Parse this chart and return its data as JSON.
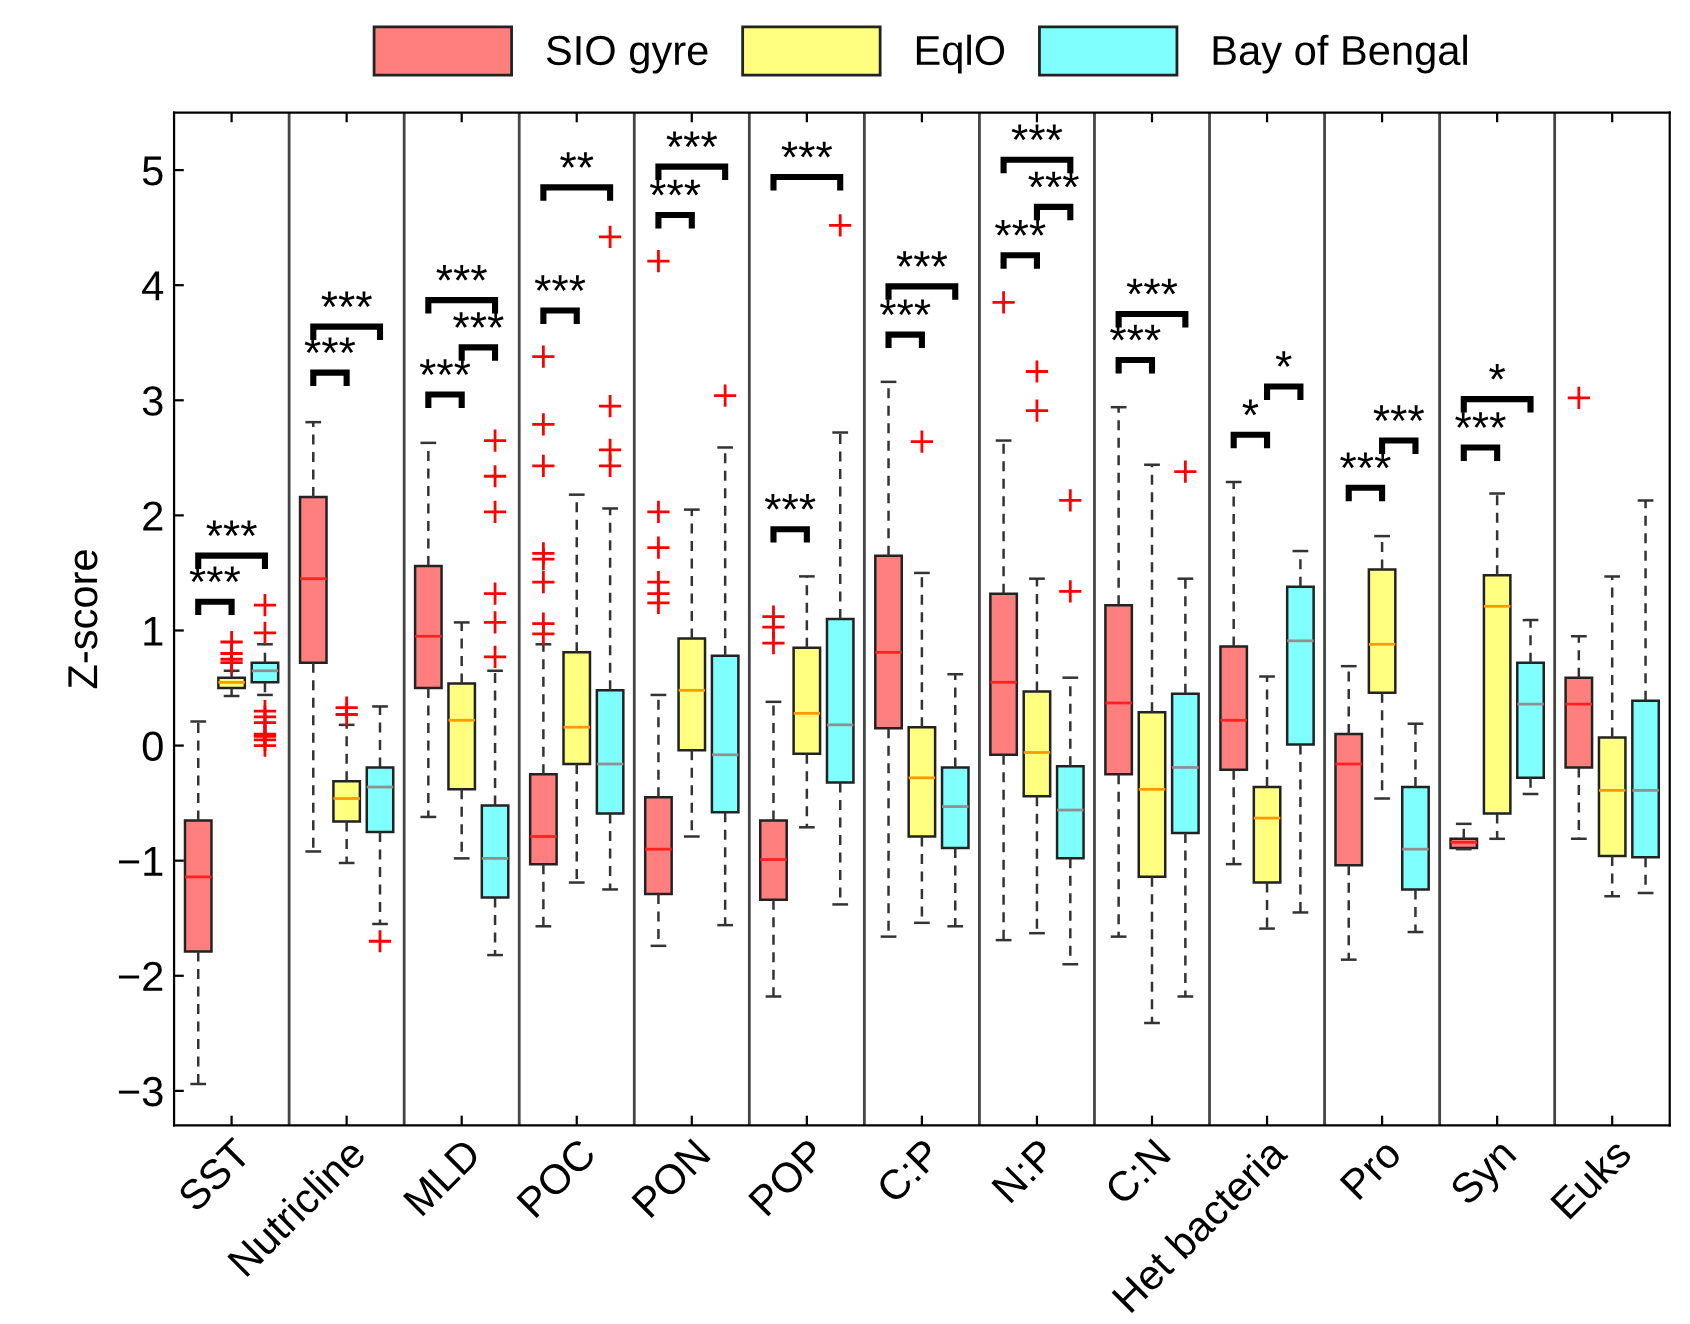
{
  "chart_data": {
    "type": "box",
    "ylabel": "Z-score",
    "categories": [
      "SST",
      "Nutricline",
      "MLD",
      "POC",
      "PON",
      "POP",
      "C:P",
      "N:P",
      "C:N",
      "Het bacteria",
      "Pro",
      "Syn",
      "Euks"
    ],
    "ylim": [
      -3.3,
      5.5
    ],
    "yticks": [
      -3,
      -2,
      -1,
      0,
      1,
      2,
      3,
      4,
      5
    ],
    "grid": "x",
    "legend": "top",
    "series": [
      {
        "name": "SIO gyre",
        "color": "#ff7f7f",
        "boxes": [
          {
            "low": -2.94,
            "q1": -1.79,
            "median": -1.14,
            "q3": -0.65,
            "high": 0.21
          },
          {
            "low": -0.92,
            "q1": 0.72,
            "median": 1.45,
            "q3": 2.16,
            "high": 2.81
          },
          {
            "low": -0.62,
            "q1": 0.5,
            "median": 0.95,
            "q3": 1.56,
            "high": 2.63
          },
          {
            "low": -1.57,
            "q1": -1.03,
            "median": -0.79,
            "q3": -0.25,
            "high": 0.88,
            "outliers": [
              3.38,
              2.79,
              2.43,
              1.67,
              1.62,
              1.42,
              1.06,
              0.97
            ]
          },
          {
            "low": -1.74,
            "q1": -1.29,
            "median": -0.9,
            "q3": -0.45,
            "high": 0.44,
            "outliers": [
              4.21,
              2.03,
              1.72,
              1.42,
              1.32,
              1.24
            ]
          },
          {
            "low": -2.18,
            "q1": -1.34,
            "median": -0.99,
            "q3": -0.65,
            "high": 0.38,
            "outliers": [
              1.12,
              1.03,
              0.89
            ]
          },
          {
            "low": -1.66,
            "q1": 0.15,
            "median": 0.81,
            "q3": 1.65,
            "high": 3.16
          },
          {
            "low": -1.69,
            "q1": -0.08,
            "median": 0.55,
            "q3": 1.32,
            "high": 2.65,
            "outliers": [
              3.85
            ]
          },
          {
            "low": -1.66,
            "q1": -0.25,
            "median": 0.37,
            "q3": 1.22,
            "high": 2.94
          },
          {
            "low": -1.03,
            "q1": -0.21,
            "median": 0.22,
            "q3": 0.86,
            "high": 2.29
          },
          {
            "low": -1.86,
            "q1": -1.04,
            "median": -0.16,
            "q3": 0.1,
            "high": 0.69
          },
          {
            "low": -0.9,
            "q1": -0.89,
            "median": -0.84,
            "q3": -0.81,
            "high": -0.68
          },
          {
            "low": -0.81,
            "q1": -0.19,
            "median": 0.36,
            "q3": 0.59,
            "high": 0.95,
            "outliers": [
              3.02
            ]
          }
        ]
      },
      {
        "name": "EqlO",
        "color": "#ffff80",
        "boxes": [
          {
            "low": 0.43,
            "q1": 0.5,
            "median": 0.55,
            "q3": 0.59,
            "high": 0.65,
            "outliers": [
              0.9,
              0.8,
              0.75,
              0.72
            ]
          },
          {
            "low": -1.02,
            "q1": -0.66,
            "median": -0.46,
            "q3": -0.31,
            "high": 0.18,
            "outliers": [
              0.33,
              0.27
            ]
          },
          {
            "low": -0.98,
            "q1": -0.38,
            "median": 0.22,
            "q3": 0.54,
            "high": 1.07
          },
          {
            "low": -1.19,
            "q1": -0.16,
            "median": 0.16,
            "q3": 0.81,
            "high": 2.18
          },
          {
            "low": -0.79,
            "q1": -0.04,
            "median": 0.48,
            "q3": 0.93,
            "high": 2.05
          },
          {
            "low": -0.71,
            "q1": -0.07,
            "median": 0.28,
            "q3": 0.85,
            "high": 1.47
          },
          {
            "low": -1.54,
            "q1": -0.79,
            "median": -0.28,
            "q3": 0.16,
            "high": 1.5,
            "outliers": [
              2.64
            ]
          },
          {
            "low": -1.63,
            "q1": -0.44,
            "median": -0.06,
            "q3": 0.47,
            "high": 1.45,
            "outliers": [
              3.25,
              2.91
            ]
          },
          {
            "low": -2.41,
            "q1": -1.14,
            "median": -0.38,
            "q3": 0.29,
            "high": 2.44
          },
          {
            "low": -1.59,
            "q1": -1.19,
            "median": -0.63,
            "q3": -0.36,
            "high": 0.6
          },
          {
            "low": -0.46,
            "q1": 0.46,
            "median": 0.88,
            "q3": 1.53,
            "high": 1.82
          },
          {
            "low": -0.81,
            "q1": -0.59,
            "median": 1.21,
            "q3": 1.48,
            "high": 2.19
          },
          {
            "low": -1.31,
            "q1": -0.96,
            "median": -0.39,
            "q3": 0.07,
            "high": 1.47
          }
        ]
      },
      {
        "name": "Bay of Bengal",
        "color": "#80ffff",
        "boxes": [
          {
            "low": 0.44,
            "q1": 0.55,
            "median": 0.65,
            "q3": 0.72,
            "high": 0.88,
            "outliers": [
              1.22,
              0.98,
              0.3,
              0.25,
              0.2,
              0.1,
              0.08,
              0.05,
              0.0
            ]
          },
          {
            "low": -1.55,
            "q1": -0.75,
            "median": -0.36,
            "q3": -0.19,
            "high": 0.34,
            "outliers": [
              -1.7
            ]
          },
          {
            "low": -1.82,
            "q1": -1.32,
            "median": -0.98,
            "q3": -0.52,
            "high": 0.65,
            "outliers": [
              2.65,
              2.34,
              2.03,
              1.32,
              1.07,
              0.77
            ]
          },
          {
            "low": -1.25,
            "q1": -0.59,
            "median": -0.16,
            "q3": 0.48,
            "high": 2.06,
            "outliers": [
              4.42,
              2.95,
              2.57,
              2.43
            ]
          },
          {
            "low": -1.56,
            "q1": -0.58,
            "median": -0.08,
            "q3": 0.78,
            "high": 2.59,
            "outliers": [
              3.04
            ]
          },
          {
            "low": -1.38,
            "q1": -0.32,
            "median": 0.18,
            "q3": 1.1,
            "high": 2.72,
            "outliers": [
              4.52
            ]
          },
          {
            "low": -1.57,
            "q1": -0.89,
            "median": -0.53,
            "q3": -0.19,
            "high": 0.62
          },
          {
            "low": -1.9,
            "q1": -0.98,
            "median": -0.56,
            "q3": -0.18,
            "high": 0.59,
            "outliers": [
              2.13,
              1.34
            ]
          },
          {
            "low": -2.18,
            "q1": -0.76,
            "median": -0.19,
            "q3": 0.45,
            "high": 1.45,
            "outliers": [
              2.38
            ]
          },
          {
            "low": -1.45,
            "q1": 0.01,
            "median": 0.91,
            "q3": 1.38,
            "high": 1.69
          },
          {
            "low": -1.62,
            "q1": -1.25,
            "median": -0.9,
            "q3": -0.36,
            "high": 0.19
          },
          {
            "low": -0.42,
            "q1": -0.28,
            "median": 0.36,
            "q3": 0.72,
            "high": 1.09
          },
          {
            "low": -1.28,
            "q1": -0.97,
            "median": -0.39,
            "q3": 0.39,
            "high": 2.13
          }
        ]
      }
    ],
    "annotations": [
      "***",
      "***",
      "***",
      "***",
      "***",
      "***",
      "***",
      "***",
      "**",
      "***",
      "***",
      "***",
      "***",
      "***",
      "***",
      "***",
      "***",
      "***",
      "***",
      "***",
      "*",
      "*",
      "***",
      "***",
      "***",
      "*"
    ]
  }
}
